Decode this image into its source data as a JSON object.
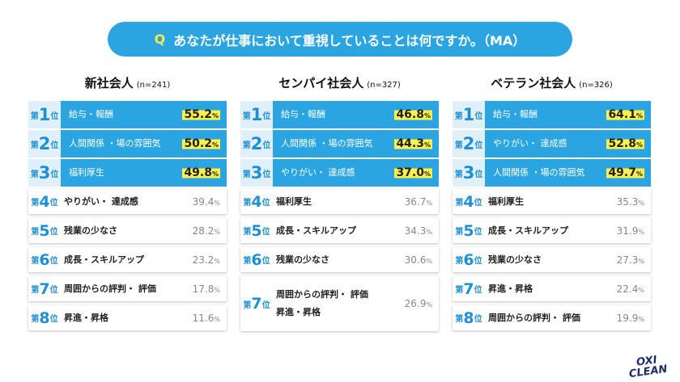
{
  "header": {
    "q": "Q",
    "question": "あなたが仕事において重視していることは何ですか。（MA）"
  },
  "rank_prefix": "第",
  "rank_suffix": "位",
  "percent_sign": "%",
  "columns": [
    {
      "title": "新社会人",
      "n": "(n=241)",
      "rows": [
        {
          "rank": 1,
          "labels": [
            "給与・報酬"
          ],
          "value": "55.2"
        },
        {
          "rank": 2,
          "labels": [
            "人間関係 ・場の雰囲気"
          ],
          "value": "50.2"
        },
        {
          "rank": 3,
          "labels": [
            "福利厚生"
          ],
          "value": "49.8"
        },
        {
          "rank": 4,
          "labels": [
            "やりがい・ 達成感"
          ],
          "value": "39.4"
        },
        {
          "rank": 5,
          "labels": [
            "残業の少なさ"
          ],
          "value": "28.2"
        },
        {
          "rank": 6,
          "labels": [
            "成長・スキルアップ"
          ],
          "value": "23.2"
        },
        {
          "rank": 7,
          "labels": [
            "周囲からの評判・ 評価"
          ],
          "value": "17.8"
        },
        {
          "rank": 8,
          "labels": [
            "昇進・昇格"
          ],
          "value": "11.6"
        }
      ]
    },
    {
      "title": "センパイ社会人",
      "n": "(n=327)",
      "rows": [
        {
          "rank": 1,
          "labels": [
            "給与・報酬"
          ],
          "value": "46.8"
        },
        {
          "rank": 2,
          "labels": [
            "人間関係 ・場の雰囲気"
          ],
          "value": "44.3"
        },
        {
          "rank": 3,
          "labels": [
            "やりがい・ 達成感"
          ],
          "value": "37.0"
        },
        {
          "rank": 4,
          "labels": [
            "福利厚生"
          ],
          "value": "36.7"
        },
        {
          "rank": 5,
          "labels": [
            "成長・スキルアップ"
          ],
          "value": "34.3"
        },
        {
          "rank": 6,
          "labels": [
            "残業の少なさ"
          ],
          "value": "30.6"
        },
        {
          "rank": 7,
          "labels": [
            "周囲からの評判・ 評価",
            "昇進・昇格"
          ],
          "value": "26.9"
        }
      ]
    },
    {
      "title": "ベテラン社会人",
      "n": "(n=326)",
      "rows": [
        {
          "rank": 1,
          "labels": [
            "給与・報酬"
          ],
          "value": "64.1"
        },
        {
          "rank": 2,
          "labels": [
            "やりがい・ 達成感"
          ],
          "value": "52.8"
        },
        {
          "rank": 3,
          "labels": [
            "人間関係 ・場の雰囲気"
          ],
          "value": "49.7"
        },
        {
          "rank": 4,
          "labels": [
            "福利厚生"
          ],
          "value": "35.3"
        },
        {
          "rank": 5,
          "labels": [
            "成長・スキルアップ"
          ],
          "value": "31.9"
        },
        {
          "rank": 6,
          "labels": [
            "残業の少なさ"
          ],
          "value": "27.3"
        },
        {
          "rank": 7,
          "labels": [
            "昇進・昇格"
          ],
          "value": "22.4"
        },
        {
          "rank": 8,
          "labels": [
            "周囲からの評判・ 評価"
          ],
          "value": "19.9"
        }
      ]
    }
  ],
  "logo": [
    "OXI",
    "CLEAN"
  ]
}
